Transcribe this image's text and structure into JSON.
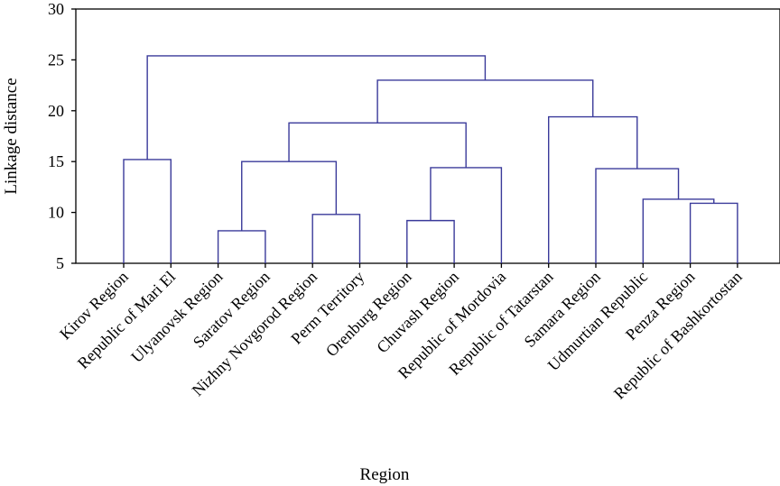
{
  "chart_data": {
    "type": "dendrogram",
    "xlabel": "Region",
    "ylabel": "Linkage distance",
    "ylim": [
      5,
      30
    ],
    "yticks": [
      5,
      10,
      15,
      20,
      25,
      30
    ],
    "grid": false,
    "line_color": "#3a3a9a",
    "leaves": [
      "Kirov Region",
      "Republic of Mari El",
      "Ulyanovsk Region",
      "Saratov Region",
      "Nizhny Novgorod Region",
      "Perm Territory",
      "Orenburg Region",
      "Chuvash Region",
      "Republic of Mordovia",
      "Republic of Tatarstan",
      "Samara Region",
      "Udmurtian Republic",
      "Penza Region",
      "Republic of Bashkortostan"
    ],
    "merges": [
      {
        "left": "L0",
        "right": "L1",
        "height": 15.2
      },
      {
        "left": "L2",
        "right": "L3",
        "height": 8.2
      },
      {
        "left": "L4",
        "right": "L5",
        "height": 9.8
      },
      {
        "left": "M1",
        "right": "M2",
        "height": 15.0
      },
      {
        "left": "L6",
        "right": "L7",
        "height": 9.2
      },
      {
        "left": "M4",
        "right": "L8",
        "height": 14.4
      },
      {
        "left": "M3",
        "right": "M5",
        "height": 18.8
      },
      {
        "left": "L12",
        "right": "L13",
        "height": 10.9
      },
      {
        "left": "L11",
        "right": "M7",
        "height": 11.3
      },
      {
        "left": "L10",
        "right": "M8",
        "height": 14.3
      },
      {
        "left": "L9",
        "right": "M9",
        "height": 19.4
      },
      {
        "left": "M6",
        "right": "M10",
        "height": 23.0
      },
      {
        "left": "M0",
        "right": "M11",
        "height": 25.4
      }
    ]
  }
}
